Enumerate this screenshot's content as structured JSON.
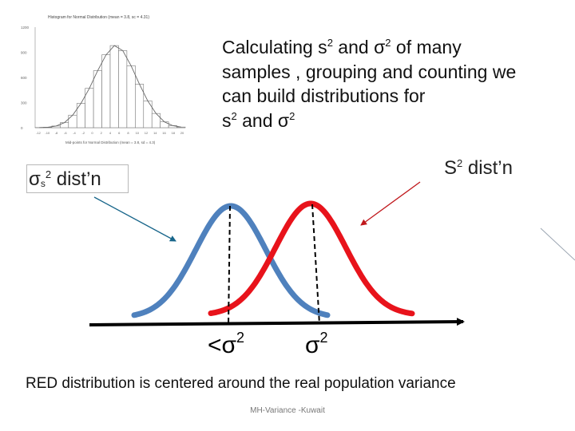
{
  "slide": {
    "intro": {
      "line1_pre": "Calculating s",
      "line1_sup1": "2",
      "line1_mid": " and σ",
      "line1_sup2": "2",
      "line1_post": " of many",
      "line2": "samples , grouping and counting we",
      "line3": "can build distributions for",
      "line4_a": "s",
      "line4_sup1": "2",
      "line4_mid": " and σ",
      "line4_sup2": "2"
    },
    "label_s2": {
      "base": "S",
      "sup": "2",
      "text": " dist’n"
    },
    "label_sigma": {
      "base": "σ",
      "sub": "s",
      "sup": "2",
      "text": " dist’n"
    },
    "tick_left": {
      "base": "<σ",
      "sup": "2"
    },
    "tick_right": {
      "base": "σ",
      "sup": "2"
    },
    "caption": "RED distribution is centered  around the real population variance",
    "footer": "MH-Variance -Kuwait"
  },
  "histogram": {
    "title": "Histogram for Normal Distribution (mean = 3.8, sc = 4.31)",
    "xlabel": "Mid-points for Normal Distribution (mean = 3.8, sd = 4.3)",
    "y_ticks": [
      "1200",
      "900",
      "600",
      "300",
      "0"
    ],
    "x_ticks": [
      "-12",
      "-10",
      "-8",
      "-6",
      "-4",
      "-2",
      "0",
      "2",
      "4",
      "6",
      "8",
      "10",
      "12",
      "14",
      "16",
      "18",
      "20"
    ],
    "bars": [
      2,
      5,
      20,
      60,
      150,
      290,
      470,
      680,
      870,
      980,
      920,
      740,
      520,
      320,
      170,
      70,
      25,
      8
    ],
    "ymax": 1200
  },
  "colors": {
    "blue_curve": "#4f81bd",
    "red_curve": "#e8131b",
    "axis": "#000000",
    "blue_arrow": "#17658a",
    "red_arrow": "#c0171b"
  }
}
